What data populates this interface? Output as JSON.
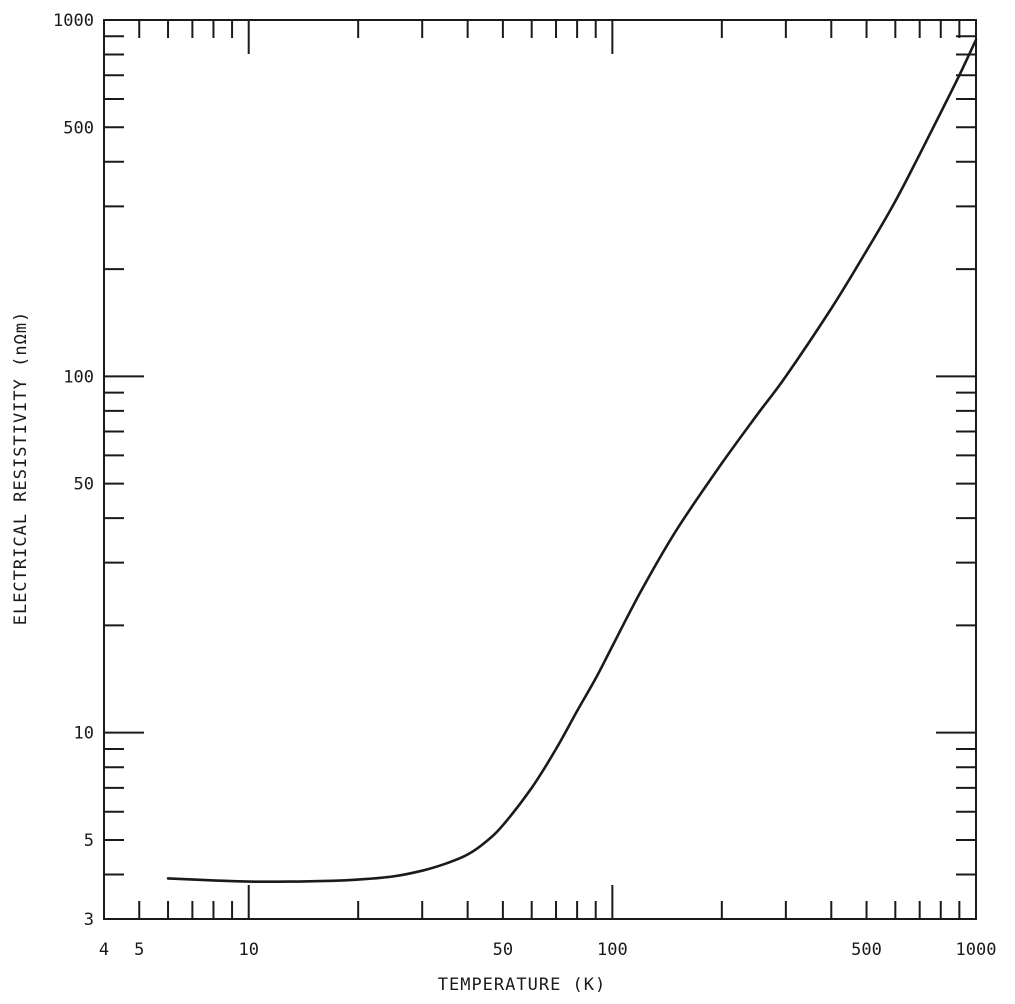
{
  "chart_data": {
    "type": "line",
    "title": "",
    "xlabel": "TEMPERATURE (K)",
    "ylabel": "ELECTRICAL RESISTIVITY (nΩm)",
    "x_scale": "log",
    "y_scale": "log",
    "xlim": [
      4,
      1000
    ],
    "ylim": [
      3,
      1000
    ],
    "grid": false,
    "legend": "none",
    "x_tick_labels": [
      {
        "value": 4,
        "label": "4"
      },
      {
        "value": 5,
        "label": "5"
      },
      {
        "value": 10,
        "label": "10"
      },
      {
        "value": 50,
        "label": "50"
      },
      {
        "value": 100,
        "label": "100"
      },
      {
        "value": 500,
        "label": "500"
      },
      {
        "value": 1000,
        "label": "1000"
      }
    ],
    "y_tick_labels": [
      {
        "value": 3,
        "label": "3"
      },
      {
        "value": 5,
        "label": "5"
      },
      {
        "value": 10,
        "label": "10"
      },
      {
        "value": 50,
        "label": "50"
      },
      {
        "value": 100,
        "label": "100"
      },
      {
        "value": 500,
        "label": "500"
      },
      {
        "value": 1000,
        "label": "1000"
      }
    ],
    "series": [
      {
        "x": [
          6,
          8,
          10,
          13,
          17,
          20,
          25,
          30,
          35,
          40,
          45,
          50,
          60,
          70,
          80,
          90,
          100,
          120,
          150,
          200,
          250,
          300,
          400,
          500,
          600,
          700,
          800,
          900,
          1000
        ],
        "y": [
          3.9,
          3.85,
          3.82,
          3.82,
          3.84,
          3.87,
          3.95,
          4.1,
          4.3,
          4.55,
          4.95,
          5.5,
          7.0,
          9.0,
          11.5,
          14.2,
          17.5,
          25,
          37,
          57,
          78,
          100,
          155,
          225,
          310,
          420,
          550,
          700,
          880
        ]
      }
    ]
  }
}
